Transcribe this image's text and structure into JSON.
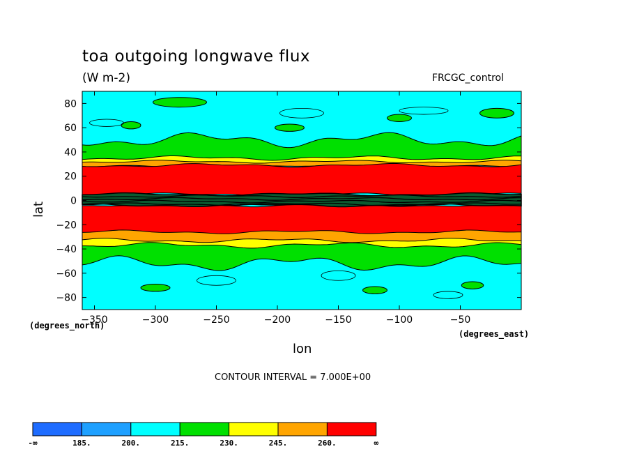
{
  "chart_data": {
    "type": "contour",
    "title": "toa outgoing longwave flux",
    "units": "(W m-2)",
    "run_label": "FRCGC_control",
    "xlabel": "lon",
    "ylabel": "lat",
    "x_units_note": "(degrees_east)",
    "y_units_note": "(degrees_north)",
    "contour_interval": "CONTOUR INTERVAL = 7.000E+00",
    "xlim": [
      -360,
      0
    ],
    "ylim": [
      -90,
      90
    ],
    "x_ticks": [
      -350,
      -300,
      -250,
      -200,
      -150,
      -100,
      -50
    ],
    "y_ticks": [
      80,
      60,
      40,
      20,
      0,
      -20,
      -40,
      -60,
      -80
    ],
    "colorbar": {
      "labels": [
        "-∞",
        "185.",
        "200.",
        "215.",
        "230.",
        "245.",
        "260.",
        "∞"
      ],
      "colors": [
        "#1e6cff",
        "#1ea0ff",
        "#00ffff",
        "#00e000",
        "#ffff00",
        "#ffa500",
        "#ff0000"
      ]
    },
    "zonal_bands": [
      {
        "lat_from": 90,
        "lat_to": 50,
        "level": "200-215"
      },
      {
        "lat_from": 50,
        "lat_to": 36,
        "level": "215-230"
      },
      {
        "lat_from": 36,
        "lat_to": 30,
        "level": "230-260"
      },
      {
        "lat_from": 30,
        "lat_to": 5,
        "level": ">260"
      },
      {
        "lat_from": 5,
        "lat_to": -4,
        "level": "<230 (ITCZ, dense contours)"
      },
      {
        "lat_from": -4,
        "lat_to": -25,
        "level": ">260"
      },
      {
        "lat_from": -25,
        "lat_to": -35,
        "level": "230-260"
      },
      {
        "lat_from": -35,
        "lat_to": -55,
        "level": "215-230"
      },
      {
        "lat_from": -55,
        "lat_to": -90,
        "level": "200-215"
      }
    ]
  }
}
